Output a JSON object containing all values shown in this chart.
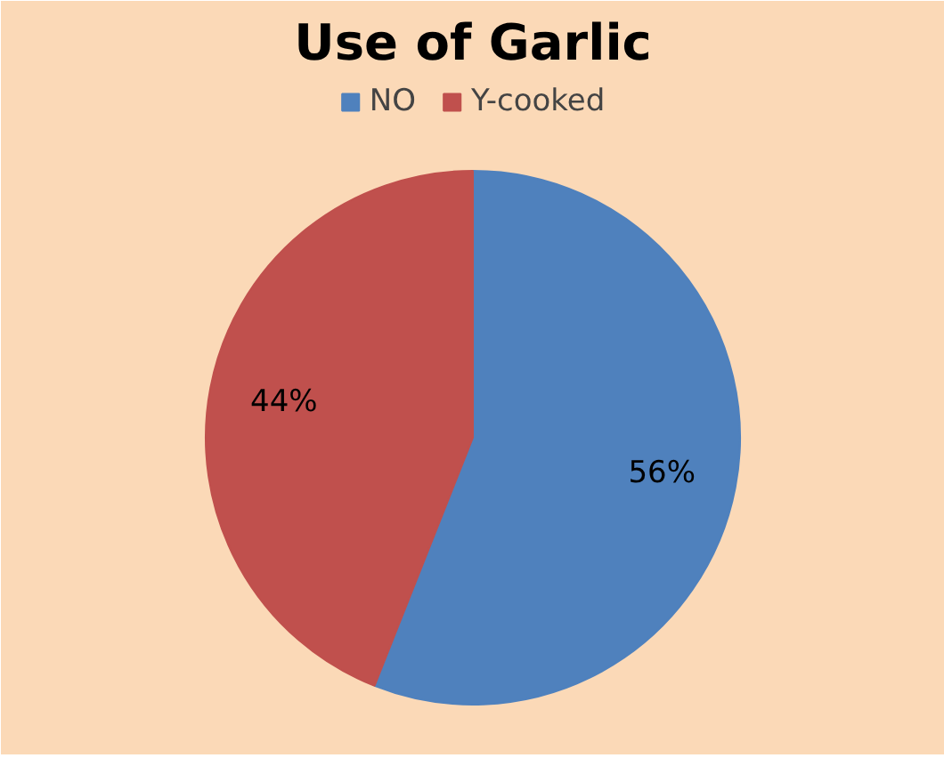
{
  "chart_data": {
    "type": "pie",
    "title": "Use of Garlic",
    "categories": [
      "NO",
      "Y-cooked"
    ],
    "values": [
      56,
      44
    ],
    "colors": [
      "#4f81bd",
      "#c0504d"
    ],
    "value_labels": [
      "56%",
      "44%"
    ],
    "legend": "top"
  }
}
